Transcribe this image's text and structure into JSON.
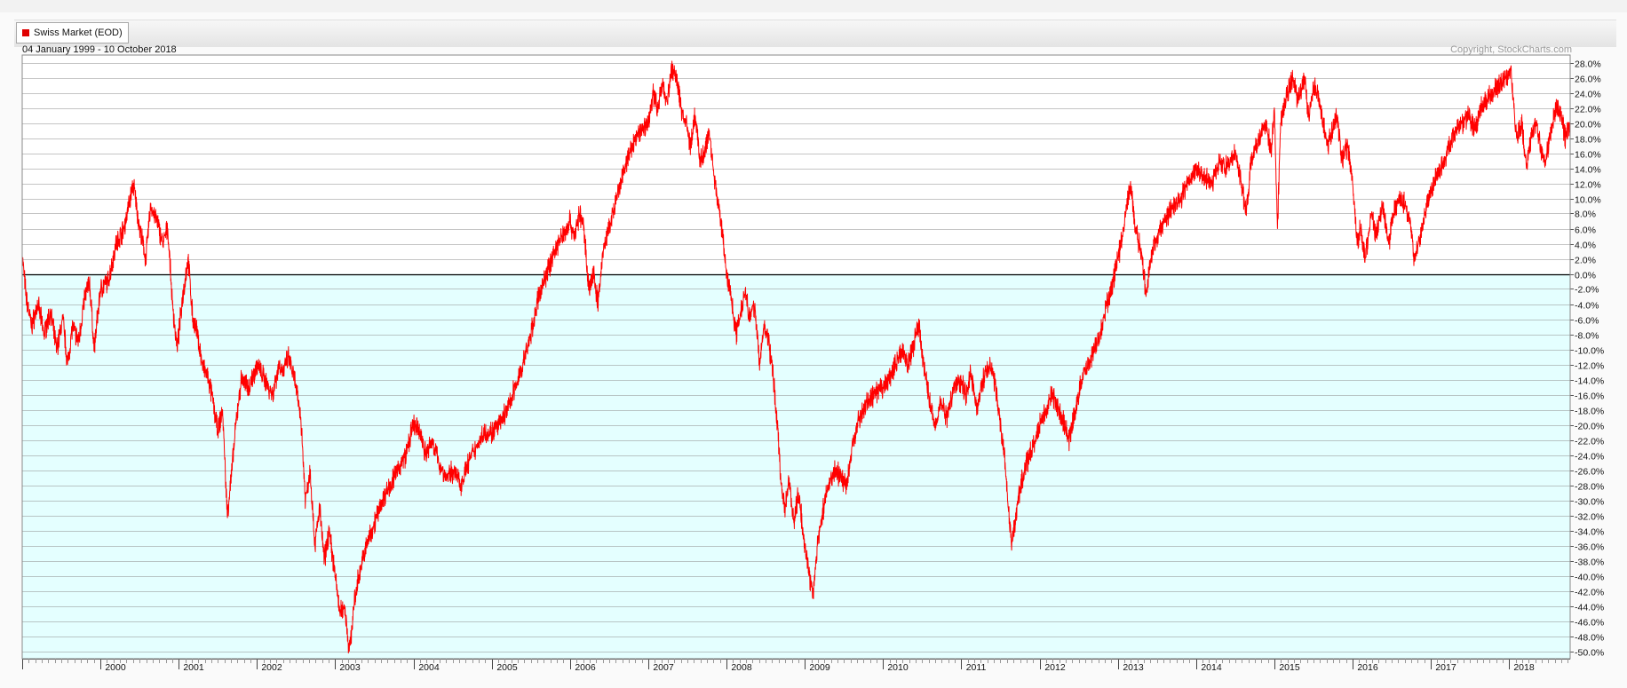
{
  "legend": {
    "label": "Swiss Market (EOD)",
    "color": "#e00000"
  },
  "header": {
    "date_range": "04 January 1999 - 10 October 2018",
    "copyright": "Copyright, StockCharts.com"
  },
  "colors": {
    "line": "#ff0000",
    "positive_bg": "#ffffff",
    "negative_bg": "#e4ffff",
    "grid": "#8c8c8c",
    "zero_line": "#000000"
  },
  "chart_data": {
    "type": "line",
    "series": [
      {
        "name": "Swiss Market (EOD)",
        "points": [
          [
            1999.0,
            2.5
          ],
          [
            1999.05,
            -3
          ],
          [
            1999.12,
            -7
          ],
          [
            1999.2,
            -4
          ],
          [
            1999.28,
            -8
          ],
          [
            1999.36,
            -5
          ],
          [
            1999.44,
            -10
          ],
          [
            1999.52,
            -6
          ],
          [
            1999.58,
            -12
          ],
          [
            1999.64,
            -7
          ],
          [
            1999.72,
            -9
          ],
          [
            1999.8,
            -3
          ],
          [
            1999.86,
            -1
          ],
          [
            1999.92,
            -10
          ],
          [
            2000.0,
            -2
          ],
          [
            2000.1,
            -1
          ],
          [
            2000.2,
            4
          ],
          [
            2000.3,
            6
          ],
          [
            2000.42,
            12
          ],
          [
            2000.5,
            6
          ],
          [
            2000.58,
            2
          ],
          [
            2000.64,
            9
          ],
          [
            2000.72,
            7
          ],
          [
            2000.8,
            4
          ],
          [
            2000.86,
            6
          ],
          [
            2000.92,
            -4
          ],
          [
            2000.98,
            -10
          ],
          [
            2001.05,
            -3
          ],
          [
            2001.12,
            2
          ],
          [
            2001.18,
            -6
          ],
          [
            2001.24,
            -8
          ],
          [
            2001.3,
            -12
          ],
          [
            2001.38,
            -14
          ],
          [
            2001.44,
            -17
          ],
          [
            2001.5,
            -21
          ],
          [
            2001.56,
            -18
          ],
          [
            2001.62,
            -32
          ],
          [
            2001.68,
            -26
          ],
          [
            2001.74,
            -19
          ],
          [
            2001.8,
            -14
          ],
          [
            2001.9,
            -15
          ],
          [
            2002.0,
            -12
          ],
          [
            2002.1,
            -14
          ],
          [
            2002.2,
            -16
          ],
          [
            2002.28,
            -12
          ],
          [
            2002.34,
            -13
          ],
          [
            2002.4,
            -11
          ],
          [
            2002.48,
            -14
          ],
          [
            2002.56,
            -19
          ],
          [
            2002.62,
            -30
          ],
          [
            2002.68,
            -26
          ],
          [
            2002.74,
            -36
          ],
          [
            2002.8,
            -31
          ],
          [
            2002.86,
            -38
          ],
          [
            2002.92,
            -34
          ],
          [
            2003.0,
            -40
          ],
          [
            2003.06,
            -45
          ],
          [
            2003.12,
            -44
          ],
          [
            2003.18,
            -50
          ],
          [
            2003.24,
            -44
          ],
          [
            2003.3,
            -40
          ],
          [
            2003.4,
            -36
          ],
          [
            2003.5,
            -33
          ],
          [
            2003.6,
            -30
          ],
          [
            2003.7,
            -28
          ],
          [
            2003.8,
            -26
          ],
          [
            2003.9,
            -24
          ],
          [
            2004.0,
            -20
          ],
          [
            2004.08,
            -21
          ],
          [
            2004.16,
            -24
          ],
          [
            2004.24,
            -22
          ],
          [
            2004.32,
            -25
          ],
          [
            2004.42,
            -27
          ],
          [
            2004.52,
            -26
          ],
          [
            2004.6,
            -28
          ],
          [
            2004.7,
            -25
          ],
          [
            2004.8,
            -23
          ],
          [
            2004.9,
            -21
          ],
          [
            2005.0,
            -21
          ],
          [
            2005.1,
            -20
          ],
          [
            2005.2,
            -18
          ],
          [
            2005.3,
            -15
          ],
          [
            2005.4,
            -12
          ],
          [
            2005.5,
            -8
          ],
          [
            2005.6,
            -3
          ],
          [
            2005.7,
            0
          ],
          [
            2005.8,
            3
          ],
          [
            2005.9,
            5
          ],
          [
            2006.0,
            7
          ],
          [
            2006.06,
            5
          ],
          [
            2006.12,
            8
          ],
          [
            2006.18,
            6
          ],
          [
            2006.24,
            -2
          ],
          [
            2006.3,
            0
          ],
          [
            2006.36,
            -4
          ],
          [
            2006.42,
            3
          ],
          [
            2006.5,
            6
          ],
          [
            2006.6,
            10
          ],
          [
            2006.7,
            14
          ],
          [
            2006.8,
            17
          ],
          [
            2006.9,
            19
          ],
          [
            2007.0,
            20
          ],
          [
            2007.06,
            24
          ],
          [
            2007.12,
            22
          ],
          [
            2007.18,
            25
          ],
          [
            2007.24,
            23
          ],
          [
            2007.3,
            27
          ],
          [
            2007.36,
            26
          ],
          [
            2007.42,
            22
          ],
          [
            2007.48,
            20
          ],
          [
            2007.54,
            17
          ],
          [
            2007.6,
            21
          ],
          [
            2007.66,
            15
          ],
          [
            2007.72,
            16
          ],
          [
            2007.78,
            19
          ],
          [
            2007.84,
            13
          ],
          [
            2007.9,
            9
          ],
          [
            2007.95,
            5
          ],
          [
            2008.0,
            0
          ],
          [
            2008.06,
            -3
          ],
          [
            2008.12,
            -8
          ],
          [
            2008.18,
            -5
          ],
          [
            2008.24,
            -2
          ],
          [
            2008.3,
            -6
          ],
          [
            2008.36,
            -4
          ],
          [
            2008.42,
            -12
          ],
          [
            2008.48,
            -7
          ],
          [
            2008.54,
            -9
          ],
          [
            2008.6,
            -14
          ],
          [
            2008.65,
            -20
          ],
          [
            2008.7,
            -28
          ],
          [
            2008.75,
            -31
          ],
          [
            2008.8,
            -27
          ],
          [
            2008.86,
            -33
          ],
          [
            2008.92,
            -29
          ],
          [
            2009.0,
            -36
          ],
          [
            2009.06,
            -40
          ],
          [
            2009.1,
            -43
          ],
          [
            2009.16,
            -36
          ],
          [
            2009.22,
            -32
          ],
          [
            2009.3,
            -28
          ],
          [
            2009.38,
            -26
          ],
          [
            2009.46,
            -27
          ],
          [
            2009.54,
            -28
          ],
          [
            2009.62,
            -22
          ],
          [
            2009.7,
            -19
          ],
          [
            2009.8,
            -17
          ],
          [
            2009.9,
            -16
          ],
          [
            2010.0,
            -15
          ],
          [
            2010.08,
            -14
          ],
          [
            2010.16,
            -12
          ],
          [
            2010.24,
            -10
          ],
          [
            2010.32,
            -12
          ],
          [
            2010.38,
            -10
          ],
          [
            2010.42,
            -8
          ],
          [
            2010.46,
            -7
          ],
          [
            2010.52,
            -12
          ],
          [
            2010.58,
            -16
          ],
          [
            2010.66,
            -20
          ],
          [
            2010.74,
            -17
          ],
          [
            2010.82,
            -19
          ],
          [
            2010.9,
            -15
          ],
          [
            2011.0,
            -14
          ],
          [
            2011.06,
            -16
          ],
          [
            2011.12,
            -13
          ],
          [
            2011.2,
            -18
          ],
          [
            2011.28,
            -14
          ],
          [
            2011.36,
            -12
          ],
          [
            2011.44,
            -15
          ],
          [
            2011.5,
            -20
          ],
          [
            2011.56,
            -25
          ],
          [
            2011.6,
            -31
          ],
          [
            2011.64,
            -36
          ],
          [
            2011.7,
            -32
          ],
          [
            2011.76,
            -28
          ],
          [
            2011.84,
            -25
          ],
          [
            2011.92,
            -23
          ],
          [
            2012.0,
            -20
          ],
          [
            2012.08,
            -18
          ],
          [
            2012.16,
            -16
          ],
          [
            2012.24,
            -18
          ],
          [
            2012.32,
            -20
          ],
          [
            2012.38,
            -22
          ],
          [
            2012.46,
            -18
          ],
          [
            2012.54,
            -14
          ],
          [
            2012.62,
            -12
          ],
          [
            2012.7,
            -10
          ],
          [
            2012.78,
            -8
          ],
          [
            2012.86,
            -4
          ],
          [
            2012.94,
            -1
          ],
          [
            2013.0,
            2
          ],
          [
            2013.06,
            5
          ],
          [
            2013.1,
            8
          ],
          [
            2013.16,
            12
          ],
          [
            2013.22,
            6
          ],
          [
            2013.3,
            3
          ],
          [
            2013.36,
            -3
          ],
          [
            2013.42,
            2
          ],
          [
            2013.5,
            5
          ],
          [
            2013.6,
            7
          ],
          [
            2013.7,
            9
          ],
          [
            2013.8,
            10
          ],
          [
            2013.9,
            12
          ],
          [
            2014.0,
            14
          ],
          [
            2014.1,
            13
          ],
          [
            2014.2,
            12
          ],
          [
            2014.3,
            15
          ],
          [
            2014.4,
            14
          ],
          [
            2014.5,
            16
          ],
          [
            2014.58,
            12
          ],
          [
            2014.64,
            8
          ],
          [
            2014.7,
            15
          ],
          [
            2014.8,
            18
          ],
          [
            2014.9,
            20
          ],
          [
            2014.96,
            16
          ],
          [
            2015.0,
            22
          ],
          [
            2015.04,
            6
          ],
          [
            2015.08,
            20
          ],
          [
            2015.16,
            24
          ],
          [
            2015.24,
            26
          ],
          [
            2015.3,
            23
          ],
          [
            2015.38,
            26
          ],
          [
            2015.44,
            21
          ],
          [
            2015.5,
            25
          ],
          [
            2015.56,
            24
          ],
          [
            2015.62,
            20
          ],
          [
            2015.68,
            17
          ],
          [
            2015.74,
            19
          ],
          [
            2015.8,
            21
          ],
          [
            2015.86,
            15
          ],
          [
            2015.94,
            17
          ],
          [
            2016.0,
            12
          ],
          [
            2016.06,
            4
          ],
          [
            2016.1,
            6
          ],
          [
            2016.16,
            2
          ],
          [
            2016.24,
            8
          ],
          [
            2016.3,
            5
          ],
          [
            2016.38,
            9
          ],
          [
            2016.46,
            4
          ],
          [
            2016.52,
            8
          ],
          [
            2016.6,
            10
          ],
          [
            2016.68,
            9
          ],
          [
            2016.74,
            7
          ],
          [
            2016.78,
            2
          ],
          [
            2016.84,
            4
          ],
          [
            2016.92,
            8
          ],
          [
            2017.0,
            11
          ],
          [
            2017.08,
            13
          ],
          [
            2017.16,
            15
          ],
          [
            2017.24,
            17
          ],
          [
            2017.32,
            19
          ],
          [
            2017.4,
            20
          ],
          [
            2017.48,
            21
          ],
          [
            2017.56,
            19
          ],
          [
            2017.64,
            22
          ],
          [
            2017.72,
            23
          ],
          [
            2017.8,
            24
          ],
          [
            2017.88,
            25
          ],
          [
            2017.96,
            26
          ],
          [
            2018.02,
            27
          ],
          [
            2018.06,
            22
          ],
          [
            2018.1,
            18
          ],
          [
            2018.16,
            20
          ],
          [
            2018.22,
            14
          ],
          [
            2018.28,
            18
          ],
          [
            2018.34,
            20
          ],
          [
            2018.4,
            17
          ],
          [
            2018.46,
            15
          ],
          [
            2018.52,
            18
          ],
          [
            2018.6,
            22
          ],
          [
            2018.66,
            21
          ],
          [
            2018.72,
            18
          ],
          [
            2018.78,
            20
          ]
        ]
      }
    ],
    "x_tick_labels": [
      "2000",
      "2001",
      "2002",
      "2003",
      "2004",
      "2005",
      "2006",
      "2007",
      "2008",
      "2009",
      "2010",
      "2011",
      "2012",
      "2013",
      "2014",
      "2015",
      "2016",
      "2017",
      "2018"
    ],
    "y_tick_labels": [
      "28.0%",
      "26.0%",
      "24.0%",
      "22.0%",
      "20.0%",
      "18.0%",
      "16.0%",
      "14.0%",
      "12.0%",
      "10.0%",
      "8.0%",
      "6.0%",
      "4.0%",
      "2.0%",
      "0.0%",
      "-2.0%",
      "-4.0%",
      "-6.0%",
      "-8.0%",
      "-10.0%",
      "-12.0%",
      "-14.0%",
      "-16.0%",
      "-18.0%",
      "-20.0%",
      "-22.0%",
      "-24.0%",
      "-26.0%",
      "-28.0%",
      "-30.0%",
      "-32.0%",
      "-34.0%",
      "-36.0%",
      "-38.0%",
      "-40.0%",
      "-42.0%",
      "-44.0%",
      "-46.0%",
      "-48.0%",
      "-50.0%"
    ],
    "xlim": [
      1999.0,
      2018.78
    ],
    "ylim": [
      -51,
      29
    ],
    "grid": true,
    "legend_position": "top-left",
    "title": "",
    "xlabel": "",
    "ylabel": ""
  }
}
